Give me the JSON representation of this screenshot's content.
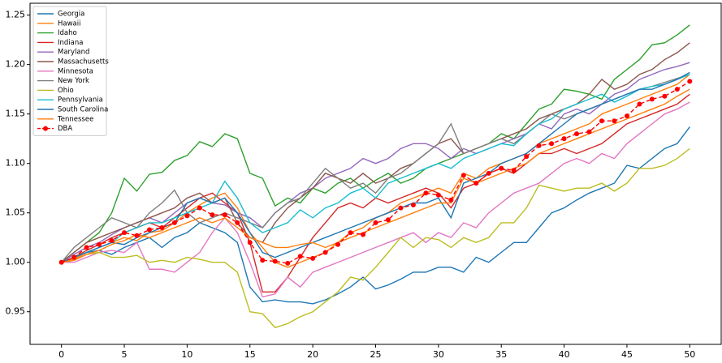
{
  "chart_data": {
    "type": "line",
    "x": [
      0,
      1,
      2,
      3,
      4,
      5,
      6,
      7,
      8,
      9,
      10,
      11,
      12,
      13,
      14,
      15,
      16,
      17,
      18,
      19,
      20,
      21,
      22,
      23,
      24,
      25,
      26,
      27,
      28,
      29,
      30,
      31,
      32,
      33,
      34,
      35,
      36,
      37,
      38,
      39,
      40,
      41,
      42,
      43,
      44,
      45,
      46,
      47,
      48,
      49,
      50
    ],
    "xlim": [
      -2.5,
      52.5
    ],
    "ylim": [
      0.917,
      1.262
    ],
    "xticks": [
      0,
      5,
      10,
      15,
      20,
      25,
      30,
      35,
      40,
      45,
      50
    ],
    "yticks": [
      0.95,
      {
        "value": 1.0,
        "label": "1.00"
      },
      1.05,
      {
        "value": 1.1,
        "label": "1.10"
      },
      1.15,
      {
        "value": 1.2,
        "label": "1.20"
      },
      1.25
    ],
    "legend": "upper left",
    "series": [
      {
        "name": "Georgia",
        "color": "#1f77b4",
        "values": [
          1.0,
          1.003,
          1.01,
          1.012,
          1.008,
          1.015,
          1.02,
          1.025,
          1.015,
          1.025,
          1.03,
          1.04,
          1.035,
          1.03,
          1.02,
          0.975,
          0.96,
          0.962,
          0.96,
          0.96,
          0.958,
          0.962,
          0.968,
          0.975,
          0.985,
          0.973,
          0.977,
          0.983,
          0.99,
          0.99,
          0.995,
          0.995,
          0.99,
          1.005,
          1.0,
          1.01,
          1.02,
          1.02,
          1.035,
          1.05,
          1.055,
          1.063,
          1.07,
          1.075,
          1.08,
          1.098,
          1.095,
          1.105,
          1.115,
          1.12,
          1.137
        ]
      },
      {
        "name": "Hawaii",
        "color": "#ff7f0e",
        "values": [
          1.0,
          1.003,
          1.01,
          1.015,
          1.02,
          1.025,
          1.022,
          1.03,
          1.032,
          1.04,
          1.05,
          1.058,
          1.065,
          1.07,
          1.055,
          1.03,
          1.015,
          1.0,
          0.995,
          1.0,
          1.005,
          1.01,
          1.02,
          1.03,
          1.035,
          1.045,
          1.05,
          1.06,
          1.065,
          1.07,
          1.075,
          1.07,
          1.09,
          1.085,
          1.095,
          1.1,
          1.105,
          1.11,
          1.12,
          1.125,
          1.13,
          1.135,
          1.14,
          1.15,
          1.155,
          1.16,
          1.165,
          1.17,
          1.175,
          1.18,
          1.19
        ]
      },
      {
        "name": "Idaho",
        "color": "#2ca02c",
        "values": [
          1.0,
          1.01,
          1.02,
          1.03,
          1.05,
          1.085,
          1.072,
          1.089,
          1.091,
          1.103,
          1.108,
          1.122,
          1.117,
          1.13,
          1.125,
          1.09,
          1.085,
          1.057,
          1.065,
          1.06,
          1.075,
          1.07,
          1.08,
          1.085,
          1.075,
          1.083,
          1.09,
          1.08,
          1.085,
          1.095,
          1.1,
          1.105,
          1.11,
          1.115,
          1.12,
          1.13,
          1.125,
          1.14,
          1.155,
          1.16,
          1.175,
          1.173,
          1.17,
          1.165,
          1.185,
          1.195,
          1.205,
          1.22,
          1.222,
          1.23,
          1.24
        ]
      },
      {
        "name": "Indiana",
        "color": "#d62728",
        "values": [
          1.0,
          1.005,
          1.012,
          1.018,
          1.025,
          1.03,
          1.035,
          1.04,
          1.035,
          1.045,
          1.055,
          1.065,
          1.07,
          1.06,
          1.05,
          1.02,
          0.97,
          0.97,
          0.985,
          1.005,
          1.025,
          1.04,
          1.055,
          1.06,
          1.055,
          1.065,
          1.06,
          1.065,
          1.07,
          1.075,
          1.07,
          1.055,
          1.075,
          1.08,
          1.09,
          1.095,
          1.09,
          1.1,
          1.11,
          1.11,
          1.115,
          1.11,
          1.115,
          1.12,
          1.13,
          1.14,
          1.145,
          1.15,
          1.155,
          1.16,
          1.17
        ]
      },
      {
        "name": "Maryland",
        "color": "#9467bd",
        "values": [
          1.0,
          1.008,
          1.015,
          1.02,
          1.028,
          1.035,
          1.04,
          1.045,
          1.04,
          1.05,
          1.06,
          1.065,
          1.06,
          1.058,
          1.05,
          1.045,
          1.035,
          1.05,
          1.06,
          1.07,
          1.075,
          1.085,
          1.09,
          1.095,
          1.105,
          1.1,
          1.105,
          1.115,
          1.12,
          1.12,
          1.115,
          1.105,
          1.115,
          1.11,
          1.115,
          1.12,
          1.125,
          1.13,
          1.14,
          1.135,
          1.15,
          1.155,
          1.15,
          1.16,
          1.17,
          1.175,
          1.185,
          1.19,
          1.195,
          1.198,
          1.202
        ]
      },
      {
        "name": "Massachusetts",
        "color": "#8c564b",
        "values": [
          1.0,
          1.01,
          1.02,
          1.025,
          1.03,
          1.035,
          1.04,
          1.045,
          1.05,
          1.055,
          1.065,
          1.07,
          1.06,
          1.065,
          1.04,
          1.025,
          1.02,
          1.04,
          1.055,
          1.065,
          1.075,
          1.09,
          1.085,
          1.08,
          1.09,
          1.08,
          1.085,
          1.095,
          1.1,
          1.11,
          1.12,
          1.125,
          1.11,
          1.115,
          1.12,
          1.125,
          1.13,
          1.135,
          1.145,
          1.15,
          1.155,
          1.16,
          1.17,
          1.185,
          1.175,
          1.18,
          1.19,
          1.195,
          1.205,
          1.212,
          1.222
        ]
      },
      {
        "name": "Minnesota",
        "color": "#e377c2",
        "values": [
          1.0,
          1.0,
          1.005,
          1.01,
          1.012,
          1.01,
          1.02,
          0.993,
          0.993,
          0.99,
          1.0,
          1.01,
          1.03,
          1.045,
          1.03,
          1.0,
          0.965,
          0.968,
          0.985,
          0.975,
          0.99,
          0.995,
          1.0,
          1.005,
          1.01,
          1.015,
          1.02,
          1.025,
          1.03,
          1.02,
          1.03,
          1.025,
          1.04,
          1.035,
          1.05,
          1.06,
          1.07,
          1.075,
          1.08,
          1.09,
          1.1,
          1.105,
          1.1,
          1.11,
          1.105,
          1.12,
          1.13,
          1.14,
          1.15,
          1.155,
          1.162
        ]
      },
      {
        "name": "New York",
        "color": "#7f7f7f",
        "values": [
          1.0,
          1.015,
          1.025,
          1.035,
          1.045,
          1.04,
          1.035,
          1.05,
          1.06,
          1.073,
          1.05,
          1.04,
          1.045,
          1.05,
          1.045,
          1.04,
          1.035,
          1.05,
          1.06,
          1.065,
          1.08,
          1.095,
          1.085,
          1.075,
          1.08,
          1.07,
          1.085,
          1.09,
          1.1,
          1.11,
          1.12,
          1.14,
          1.11,
          1.115,
          1.12,
          1.125,
          1.12,
          1.13,
          1.14,
          1.15,
          1.145,
          1.15,
          1.155,
          1.16,
          1.165,
          1.17,
          1.175,
          1.178,
          1.182,
          1.186,
          1.19
        ]
      },
      {
        "name": "Ohio",
        "color": "#bcbd22",
        "values": [
          1.0,
          1.002,
          1.008,
          1.01,
          1.005,
          1.005,
          1.007,
          1.0,
          1.002,
          1.0,
          1.005,
          1.003,
          1.0,
          1.0,
          0.99,
          0.95,
          0.948,
          0.934,
          0.938,
          0.945,
          0.95,
          0.96,
          0.97,
          0.985,
          0.982,
          0.995,
          1.01,
          1.025,
          1.015,
          1.025,
          1.023,
          1.015,
          1.025,
          1.02,
          1.025,
          1.04,
          1.04,
          1.055,
          1.078,
          1.075,
          1.072,
          1.075,
          1.075,
          1.08,
          1.072,
          1.08,
          1.095,
          1.095,
          1.098,
          1.105,
          1.115
        ]
      },
      {
        "name": "Pennsylvania",
        "color": "#17becf",
        "values": [
          1.0,
          1.005,
          1.01,
          1.015,
          1.02,
          1.03,
          1.035,
          1.04,
          1.04,
          1.045,
          1.05,
          1.055,
          1.06,
          1.082,
          1.065,
          1.04,
          1.03,
          1.035,
          1.04,
          1.053,
          1.045,
          1.055,
          1.06,
          1.07,
          1.075,
          1.065,
          1.08,
          1.085,
          1.09,
          1.095,
          1.1,
          1.095,
          1.105,
          1.11,
          1.115,
          1.12,
          1.118,
          1.13,
          1.14,
          1.145,
          1.155,
          1.16,
          1.165,
          1.17,
          1.162,
          1.168,
          1.175,
          1.178,
          1.18,
          1.185,
          1.19
        ]
      },
      {
        "name": "South Carolina",
        "color": "#1f77b4",
        "values": [
          1.0,
          1.005,
          1.01,
          1.015,
          1.02,
          1.018,
          1.025,
          1.03,
          1.035,
          1.04,
          1.06,
          1.065,
          1.06,
          1.065,
          1.05,
          1.03,
          1.01,
          1.005,
          1.01,
          1.015,
          1.02,
          1.025,
          1.03,
          1.035,
          1.04,
          1.045,
          1.05,
          1.055,
          1.06,
          1.06,
          1.065,
          1.045,
          1.08,
          1.085,
          1.09,
          1.1,
          1.105,
          1.11,
          1.12,
          1.13,
          1.14,
          1.15,
          1.155,
          1.16,
          1.165,
          1.17,
          1.175,
          1.175,
          1.18,
          1.185,
          1.192
        ]
      },
      {
        "name": "Tennessee",
        "color": "#ff7f0e",
        "values": [
          1.0,
          1.002,
          1.008,
          1.012,
          1.018,
          1.022,
          1.028,
          1.025,
          1.03,
          1.035,
          1.04,
          1.045,
          1.04,
          1.045,
          1.035,
          1.025,
          1.02,
          1.015,
          1.015,
          1.018,
          1.02,
          1.015,
          1.02,
          1.025,
          1.03,
          1.035,
          1.04,
          1.045,
          1.05,
          1.055,
          1.06,
          1.06,
          1.085,
          1.08,
          1.085,
          1.09,
          1.095,
          1.1,
          1.11,
          1.115,
          1.12,
          1.125,
          1.13,
          1.135,
          1.14,
          1.145,
          1.15,
          1.155,
          1.16,
          1.168,
          1.175
        ]
      },
      {
        "name": "DBA",
        "color": "#ff0000",
        "linestyle": "dashed",
        "marker": "circle",
        "values": [
          1.0,
          1.005,
          1.015,
          1.018,
          1.022,
          1.03,
          1.027,
          1.033,
          1.035,
          1.04,
          1.047,
          1.055,
          1.048,
          1.048,
          1.04,
          1.02,
          1.002,
          1.001,
          0.999,
          1.006,
          1.004,
          1.01,
          1.018,
          1.03,
          1.028,
          1.04,
          1.043,
          1.055,
          1.058,
          1.07,
          1.068,
          1.063,
          1.088,
          1.08,
          1.09,
          1.095,
          1.093,
          1.107,
          1.118,
          1.12,
          1.125,
          1.13,
          1.132,
          1.143,
          1.143,
          1.148,
          1.16,
          1.165,
          1.168,
          1.175,
          1.183
        ]
      }
    ]
  }
}
